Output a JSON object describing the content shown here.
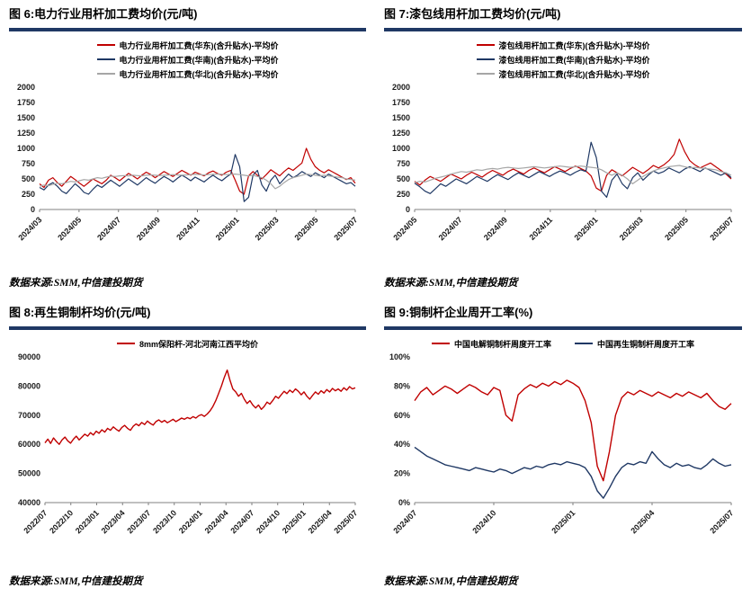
{
  "colors": {
    "series_red": "#C00000",
    "series_navy": "#1F3864",
    "series_gray": "#A6A6A6",
    "title_rule": "#1F3864"
  },
  "panels": [
    {
      "title": "图 6:电力行业用杆加工费均价(元/吨)",
      "source": "数据来源:SMM,中信建投期货"
    },
    {
      "title": "图 7:漆包线用杆加工费均价(元/吨)",
      "source": "数据来源:SMM,中信建投期货"
    },
    {
      "title": "图 8:再生铜制杆均价(元/吨)",
      "source": "数据来源:SMM,中信建投期货"
    },
    {
      "title": "图 9:铜制杆企业周开工率(%)",
      "source": "数据来源:SMM,中信建投期货"
    }
  ],
  "chart_data": [
    {
      "type": "line",
      "title": "电力行业用杆加工费均价(元/吨)",
      "ylim": [
        0,
        2000
      ],
      "ytick_values": [
        0,
        250,
        500,
        750,
        1000,
        1250,
        1500,
        1750,
        2000
      ],
      "ytick_labels": [
        "0",
        "250",
        "500",
        "750",
        "1000",
        "1250",
        "1500",
        "1750",
        "2000"
      ],
      "xlabels": [
        "2024/03",
        "2024/05",
        "2024/07",
        "2024/09",
        "2024/11",
        "2025/01",
        "2025/03",
        "2025/05",
        "2025/07"
      ],
      "legend": "column",
      "grid": false,
      "line_width": 1.2,
      "series": [
        {
          "name": "电力行业用杆加工费(华东)(含升贴水)-平均价",
          "color": "#C00000",
          "values": [
            420,
            360,
            480,
            520,
            440,
            380,
            460,
            540,
            490,
            430,
            380,
            440,
            500,
            460,
            420,
            480,
            560,
            520,
            470,
            530,
            590,
            550,
            500,
            560,
            610,
            570,
            520,
            570,
            620,
            580,
            540,
            590,
            640,
            600,
            560,
            610,
            580,
            550,
            600,
            630,
            590,
            560,
            610,
            640,
            480,
            300,
            250,
            550,
            620,
            560,
            500,
            570,
            650,
            600,
            550,
            620,
            680,
            640,
            700,
            760,
            1000,
            820,
            700,
            640,
            600,
            650,
            610,
            570,
            530,
            490,
            520,
            430
          ]
        },
        {
          "name": "电力行业用杆加工费(华南)(含升贴水)-平均价",
          "color": "#1F3864",
          "values": [
            360,
            320,
            400,
            440,
            380,
            300,
            260,
            340,
            420,
            360,
            280,
            250,
            330,
            400,
            360,
            420,
            480,
            430,
            380,
            440,
            500,
            450,
            400,
            460,
            520,
            470,
            430,
            490,
            540,
            500,
            450,
            510,
            560,
            520,
            470,
            530,
            490,
            450,
            510,
            560,
            510,
            470,
            530,
            580,
            900,
            700,
            130,
            200,
            560,
            640,
            400,
            300,
            480,
            560,
            420,
            500,
            580,
            520,
            560,
            620,
            580,
            540,
            600,
            560,
            520,
            580,
            540,
            500,
            460,
            420,
            440,
            380
          ]
        },
        {
          "name": "电力行业用杆加工费(华北)(含升贴水)-平均价",
          "color": "#A6A6A6",
          "values": [
            380,
            400,
            390,
            410,
            430,
            420,
            440,
            460,
            450,
            470,
            490,
            480,
            500,
            520,
            510,
            530,
            545,
            540,
            550,
            555,
            550,
            560,
            555,
            550,
            560,
            565,
            560,
            555,
            560,
            565,
            570,
            565,
            560,
            565,
            570,
            575,
            570,
            565,
            570,
            575,
            580,
            575,
            570,
            575,
            580,
            570,
            560,
            550,
            560,
            540,
            520,
            480,
            420,
            340,
            380,
            440,
            490,
            520,
            540,
            560,
            580,
            570,
            560,
            550,
            560,
            550,
            540,
            530,
            520,
            500,
            490,
            480
          ]
        }
      ]
    },
    {
      "type": "line",
      "title": "漆包线用杆加工费均价(元/吨)",
      "ylim": [
        0,
        2000
      ],
      "ytick_values": [
        0,
        250,
        500,
        750,
        1000,
        1250,
        1500,
        1750,
        2000
      ],
      "ytick_labels": [
        "0",
        "250",
        "500",
        "750",
        "1000",
        "1250",
        "1500",
        "1750",
        "2000"
      ],
      "xlabels": [
        "2024/05",
        "2024/07",
        "2024/09",
        "2024/11",
        "2025/01",
        "2025/03",
        "2025/05",
        "2025/07"
      ],
      "legend": "column",
      "grid": false,
      "line_width": 1.2,
      "series": [
        {
          "name": "漆包线用杆加工费(华东)(含升贴水)-平均价",
          "color": "#C00000",
          "values": [
            460,
            400,
            480,
            540,
            500,
            460,
            520,
            580,
            540,
            500,
            560,
            610,
            570,
            530,
            590,
            640,
            600,
            560,
            620,
            660,
            620,
            580,
            640,
            680,
            640,
            600,
            650,
            700,
            660,
            620,
            670,
            710,
            670,
            630,
            550,
            350,
            300,
            560,
            650,
            600,
            550,
            620,
            690,
            640,
            590,
            650,
            720,
            680,
            730,
            800,
            900,
            1150,
            950,
            800,
            730,
            680,
            720,
            760,
            700,
            640,
            580,
            500
          ]
        },
        {
          "name": "漆包线用杆加工费(华南)(含升贴水)-平均价",
          "color": "#1F3864",
          "values": [
            430,
            370,
            300,
            260,
            340,
            420,
            380,
            440,
            500,
            460,
            420,
            480,
            540,
            500,
            460,
            520,
            570,
            530,
            490,
            550,
            600,
            560,
            520,
            570,
            620,
            580,
            540,
            590,
            630,
            600,
            560,
            610,
            650,
            620,
            1100,
            850,
            300,
            200,
            480,
            580,
            420,
            340,
            520,
            600,
            480,
            560,
            630,
            590,
            620,
            680,
            640,
            600,
            660,
            700,
            660,
            620,
            680,
            640,
            600,
            560,
            600,
            520
          ]
        },
        {
          "name": "漆包线用杆加工费(华北)(含升贴水)-平均价",
          "color": "#A6A6A6",
          "values": [
            440,
            460,
            450,
            480,
            510,
            530,
            550,
            580,
            600,
            620,
            610,
            630,
            650,
            640,
            660,
            670,
            660,
            680,
            690,
            680,
            670,
            680,
            690,
            700,
            690,
            680,
            690,
            700,
            710,
            700,
            690,
            700,
            710,
            700,
            690,
            680,
            650,
            600,
            560,
            600,
            560,
            500,
            420,
            480,
            540,
            590,
            630,
            660,
            680,
            700,
            710,
            720,
            700,
            680,
            690,
            680,
            670,
            660,
            650,
            620,
            600,
            560
          ]
        }
      ]
    },
    {
      "type": "line",
      "title": "再生铜制杆均价(元/吨)",
      "ylim": [
        40000,
        90000
      ],
      "ytick_values": [
        40000,
        50000,
        60000,
        70000,
        80000,
        90000
      ],
      "ytick_labels": [
        "40000",
        "50000",
        "60000",
        "70000",
        "80000",
        "90000"
      ],
      "xlabels": [
        "2022/07",
        "2022/10",
        "2023/01",
        "2023/04",
        "2023/07",
        "2023/10",
        "2024/01",
        "2024/04",
        "2024/07",
        "2024/10",
        "2025/01",
        "2025/04",
        "2025/07"
      ],
      "legend": "row",
      "grid": false,
      "line_width": 1.4,
      "series": [
        {
          "name": "8mm保阳杆-河北河南江西平均价",
          "color": "#C00000",
          "values": [
            60500,
            61800,
            60300,
            62200,
            61000,
            60000,
            61500,
            62500,
            61200,
            60400,
            61800,
            62800,
            61500,
            62500,
            63500,
            62800,
            64000,
            63200,
            64500,
            63800,
            65000,
            64200,
            65500,
            64800,
            66000,
            65200,
            64500,
            65800,
            66500,
            65500,
            64800,
            66200,
            67000,
            66400,
            67500,
            66800,
            68000,
            67200,
            66600,
            67800,
            68400,
            67600,
            68200,
            67400,
            68000,
            68600,
            67800,
            68400,
            69000,
            68600,
            69200,
            68800,
            69500,
            69000,
            69800,
            70200,
            69600,
            70400,
            71500,
            73000,
            75000,
            77500,
            80000,
            83000,
            85500,
            82000,
            79000,
            78000,
            76500,
            77500,
            75500,
            74000,
            75000,
            73500,
            72500,
            73500,
            72000,
            73000,
            74500,
            73800,
            75000,
            76500,
            75800,
            77000,
            78200,
            77400,
            78600,
            77800,
            79000,
            78200,
            77000,
            78000,
            76500,
            75500,
            76800,
            78000,
            77200,
            78400,
            77600,
            78800,
            78000,
            79200,
            78400,
            79000,
            78200,
            79400,
            78600,
            79800,
            79000,
            79400
          ]
        }
      ]
    },
    {
      "type": "line",
      "title": "铜制杆企业周开工率(%)",
      "ylim": [
        0,
        100
      ],
      "ytick_values": [
        0,
        20,
        40,
        60,
        80,
        100
      ],
      "ytick_labels": [
        "0%",
        "20%",
        "40%",
        "60%",
        "80%",
        "100%"
      ],
      "xlabels": [
        "2024/07",
        "2024/10",
        "2025/01",
        "2025/04",
        "2025/07"
      ],
      "legend": "row",
      "grid": false,
      "line_width": 1.4,
      "series": [
        {
          "name": "中国电解铜制杆周度开工率",
          "color": "#C00000",
          "values": [
            70,
            76,
            79,
            74,
            77,
            80,
            78,
            75,
            78,
            81,
            79,
            76,
            74,
            79,
            77,
            60,
            56,
            74,
            78,
            81,
            79,
            82,
            80,
            83,
            81,
            84,
            82,
            79,
            70,
            55,
            25,
            15,
            35,
            60,
            72,
            76,
            74,
            77,
            75,
            73,
            76,
            74,
            72,
            75,
            73,
            76,
            74,
            72,
            75,
            70,
            66,
            64,
            68
          ]
        },
        {
          "name": "中国再生铜制杆周度开工率",
          "color": "#1F3864",
          "values": [
            38,
            35,
            32,
            30,
            28,
            26,
            25,
            24,
            23,
            22,
            24,
            23,
            22,
            21,
            23,
            22,
            20,
            22,
            24,
            23,
            25,
            24,
            26,
            27,
            26,
            28,
            27,
            26,
            24,
            18,
            8,
            3,
            10,
            18,
            24,
            27,
            26,
            28,
            27,
            35,
            30,
            26,
            24,
            27,
            25,
            26,
            24,
            23,
            26,
            30,
            27,
            25,
            26
          ]
        }
      ]
    }
  ]
}
